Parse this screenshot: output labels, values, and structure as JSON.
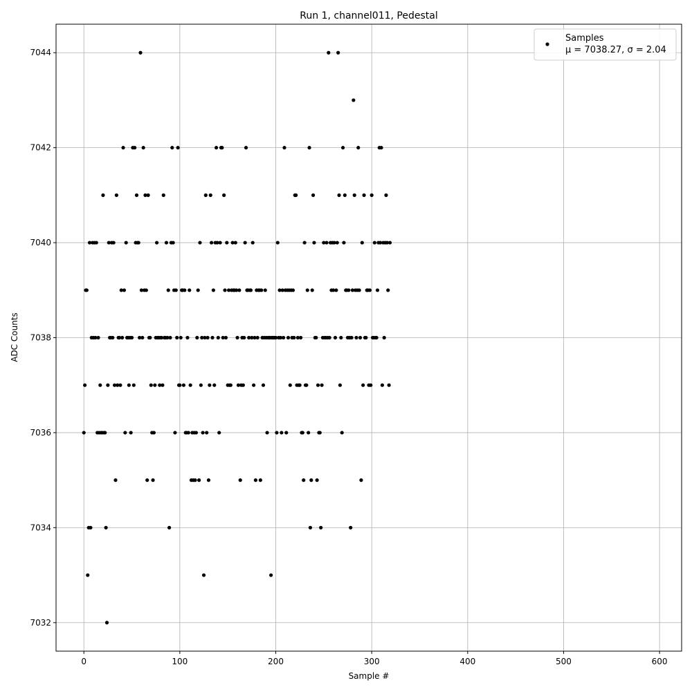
{
  "chart_data": {
    "type": "scatter",
    "title": "Run 1, channel011, Pedestal",
    "xlabel": "Sample #",
    "ylabel": "ADC Counts",
    "xlim": [
      -29,
      623
    ],
    "ylim": [
      7031.4,
      7044.6
    ],
    "xticks": [
      0,
      100,
      200,
      300,
      400,
      500,
      600
    ],
    "yticks": [
      7032,
      7034,
      7036,
      7038,
      7040,
      7042,
      7044
    ],
    "grid": true,
    "marker_color": "#000000",
    "legend": {
      "position": "top-right",
      "entries": [
        {
          "label": "Samples",
          "stat_line": "μ = 7038.27, σ = 2.04"
        }
      ]
    },
    "series": [
      {
        "name": "Samples",
        "points": [
          [
            0,
            7036
          ],
          [
            1,
            7037
          ],
          [
            2,
            7039
          ],
          [
            3,
            7039
          ],
          [
            4,
            7033
          ],
          [
            5,
            7034
          ],
          [
            6,
            7040
          ],
          [
            7,
            7034
          ],
          [
            8,
            7038
          ],
          [
            9,
            7040
          ],
          [
            10,
            7038
          ],
          [
            11,
            7040
          ],
          [
            12,
            7038
          ],
          [
            13,
            7040
          ],
          [
            14,
            7036
          ],
          [
            15,
            7038
          ],
          [
            16,
            7036
          ],
          [
            17,
            7037
          ],
          [
            18,
            7036
          ],
          [
            19,
            7036
          ],
          [
            20,
            7041
          ],
          [
            21,
            7036
          ],
          [
            22,
            7036
          ],
          [
            23,
            7034
          ],
          [
            24,
            7032
          ],
          [
            25,
            7037
          ],
          [
            26,
            7040
          ],
          [
            27,
            7038
          ],
          [
            28,
            7038
          ],
          [
            29,
            7040
          ],
          [
            30,
            7038
          ],
          [
            31,
            7040
          ],
          [
            32,
            7037
          ],
          [
            33,
            7035
          ],
          [
            34,
            7041
          ],
          [
            35,
            7037
          ],
          [
            36,
            7038
          ],
          [
            37,
            7038
          ],
          [
            38,
            7037
          ],
          [
            39,
            7039
          ],
          [
            40,
            7038
          ],
          [
            41,
            7042
          ],
          [
            42,
            7039
          ],
          [
            43,
            7036
          ],
          [
            44,
            7040
          ],
          [
            45,
            7038
          ],
          [
            46,
            7038
          ],
          [
            47,
            7037
          ],
          [
            48,
            7038
          ],
          [
            49,
            7036
          ],
          [
            50,
            7038
          ],
          [
            51,
            7042
          ],
          [
            52,
            7037
          ],
          [
            53,
            7042
          ],
          [
            54,
            7040
          ],
          [
            55,
            7041
          ],
          [
            56,
            7040
          ],
          [
            57,
            7040
          ],
          [
            58,
            7038
          ],
          [
            59,
            7044
          ],
          [
            60,
            7039
          ],
          [
            61,
            7038
          ],
          [
            62,
            7042
          ],
          [
            63,
            7039
          ],
          [
            64,
            7041
          ],
          [
            65,
            7039
          ],
          [
            66,
            7035
          ],
          [
            67,
            7041
          ],
          [
            68,
            7038
          ],
          [
            69,
            7038
          ],
          [
            70,
            7037
          ],
          [
            71,
            7036
          ],
          [
            72,
            7035
          ],
          [
            73,
            7036
          ],
          [
            74,
            7037
          ],
          [
            75,
            7038
          ],
          [
            76,
            7040
          ],
          [
            77,
            7038
          ],
          [
            78,
            7038
          ],
          [
            79,
            7037
          ],
          [
            80,
            7038
          ],
          [
            81,
            7038
          ],
          [
            82,
            7037
          ],
          [
            83,
            7041
          ],
          [
            84,
            7038
          ],
          [
            85,
            7038
          ],
          [
            86,
            7040
          ],
          [
            87,
            7038
          ],
          [
            88,
            7039
          ],
          [
            89,
            7034
          ],
          [
            90,
            7038
          ],
          [
            91,
            7040
          ],
          [
            92,
            7042
          ],
          [
            93,
            7040
          ],
          [
            94,
            7039
          ],
          [
            95,
            7036
          ],
          [
            96,
            7039
          ],
          [
            97,
            7038
          ],
          [
            98,
            7042
          ],
          [
            99,
            7037
          ],
          [
            100,
            7037
          ],
          [
            101,
            7038
          ],
          [
            102,
            7039
          ],
          [
            103,
            7039
          ],
          [
            104,
            7037
          ],
          [
            105,
            7039
          ],
          [
            106,
            7036
          ],
          [
            107,
            7036
          ],
          [
            108,
            7038
          ],
          [
            109,
            7036
          ],
          [
            110,
            7039
          ],
          [
            111,
            7037
          ],
          [
            112,
            7035
          ],
          [
            113,
            7036
          ],
          [
            114,
            7035
          ],
          [
            115,
            7036
          ],
          [
            116,
            7035
          ],
          [
            117,
            7036
          ],
          [
            118,
            7038
          ],
          [
            119,
            7039
          ],
          [
            120,
            7035
          ],
          [
            121,
            7040
          ],
          [
            122,
            7037
          ],
          [
            123,
            7038
          ],
          [
            124,
            7036
          ],
          [
            125,
            7033
          ],
          [
            126,
            7038
          ],
          [
            127,
            7041
          ],
          [
            128,
            7036
          ],
          [
            129,
            7038
          ],
          [
            130,
            7035
          ],
          [
            131,
            7037
          ],
          [
            132,
            7041
          ],
          [
            133,
            7040
          ],
          [
            134,
            7038
          ],
          [
            135,
            7039
          ],
          [
            136,
            7037
          ],
          [
            137,
            7040
          ],
          [
            138,
            7042
          ],
          [
            139,
            7040
          ],
          [
            140,
            7038
          ],
          [
            141,
            7036
          ],
          [
            142,
            7040
          ],
          [
            143,
            7042
          ],
          [
            144,
            7042
          ],
          [
            145,
            7038
          ],
          [
            146,
            7041
          ],
          [
            147,
            7039
          ],
          [
            148,
            7038
          ],
          [
            149,
            7040
          ],
          [
            150,
            7037
          ],
          [
            151,
            7039
          ],
          [
            152,
            7037
          ],
          [
            153,
            7037
          ],
          [
            154,
            7039
          ],
          [
            155,
            7040
          ],
          [
            156,
            7039
          ],
          [
            157,
            7039
          ],
          [
            158,
            7040
          ],
          [
            159,
            7039
          ],
          [
            160,
            7038
          ],
          [
            161,
            7037
          ],
          [
            162,
            7039
          ],
          [
            163,
            7035
          ],
          [
            164,
            7037
          ],
          [
            165,
            7038
          ],
          [
            166,
            7037
          ],
          [
            167,
            7038
          ],
          [
            168,
            7040
          ],
          [
            169,
            7042
          ],
          [
            170,
            7039
          ],
          [
            171,
            7039
          ],
          [
            172,
            7038
          ],
          [
            173,
            7039
          ],
          [
            174,
            7039
          ],
          [
            175,
            7038
          ],
          [
            176,
            7040
          ],
          [
            177,
            7037
          ],
          [
            178,
            7038
          ],
          [
            179,
            7035
          ],
          [
            180,
            7039
          ],
          [
            181,
            7038
          ],
          [
            182,
            7039
          ],
          [
            183,
            7039
          ],
          [
            184,
            7035
          ],
          [
            185,
            7039
          ],
          [
            186,
            7038
          ],
          [
            187,
            7037
          ],
          [
            188,
            7038
          ],
          [
            189,
            7039
          ],
          [
            190,
            7038
          ],
          [
            191,
            7036
          ],
          [
            192,
            7038
          ],
          [
            193,
            7038
          ],
          [
            194,
            7038
          ],
          [
            195,
            7033
          ],
          [
            196,
            7038
          ],
          [
            197,
            7038
          ],
          [
            198,
            7038
          ],
          [
            199,
            7038
          ],
          [
            200,
            7038
          ],
          [
            201,
            7036
          ],
          [
            202,
            7040
          ],
          [
            203,
            7038
          ],
          [
            204,
            7039
          ],
          [
            205,
            7038
          ],
          [
            206,
            7036
          ],
          [
            207,
            7039
          ],
          [
            208,
            7038
          ],
          [
            209,
            7042
          ],
          [
            210,
            7039
          ],
          [
            211,
            7036
          ],
          [
            212,
            7039
          ],
          [
            213,
            7038
          ],
          [
            214,
            7039
          ],
          [
            215,
            7037
          ],
          [
            216,
            7039
          ],
          [
            217,
            7038
          ],
          [
            218,
            7039
          ],
          [
            219,
            7038
          ],
          [
            220,
            7041
          ],
          [
            221,
            7041
          ],
          [
            222,
            7037
          ],
          [
            223,
            7038
          ],
          [
            224,
            7037
          ],
          [
            225,
            7037
          ],
          [
            226,
            7038
          ],
          [
            227,
            7036
          ],
          [
            228,
            7036
          ],
          [
            229,
            7035
          ],
          [
            230,
            7040
          ],
          [
            231,
            7037
          ],
          [
            232,
            7037
          ],
          [
            233,
            7039
          ],
          [
            234,
            7036
          ],
          [
            235,
            7042
          ],
          [
            236,
            7034
          ],
          [
            237,
            7035
          ],
          [
            238,
            7039
          ],
          [
            239,
            7041
          ],
          [
            240,
            7040
          ],
          [
            241,
            7038
          ],
          [
            242,
            7038
          ],
          [
            243,
            7035
          ],
          [
            244,
            7037
          ],
          [
            245,
            7036
          ],
          [
            246,
            7036
          ],
          [
            247,
            7034
          ],
          [
            248,
            7037
          ],
          [
            249,
            7038
          ],
          [
            250,
            7040
          ],
          [
            251,
            7038
          ],
          [
            252,
            7038
          ],
          [
            253,
            7040
          ],
          [
            254,
            7038
          ],
          [
            255,
            7044
          ],
          [
            256,
            7038
          ],
          [
            257,
            7040
          ],
          [
            258,
            7039
          ],
          [
            259,
            7040
          ],
          [
            260,
            7039
          ],
          [
            261,
            7040
          ],
          [
            262,
            7038
          ],
          [
            263,
            7039
          ],
          [
            264,
            7040
          ],
          [
            265,
            7044
          ],
          [
            266,
            7041
          ],
          [
            267,
            7037
          ],
          [
            268,
            7038
          ],
          [
            269,
            7036
          ],
          [
            270,
            7042
          ],
          [
            271,
            7040
          ],
          [
            272,
            7041
          ],
          [
            273,
            7039
          ],
          [
            274,
            7039
          ],
          [
            275,
            7038
          ],
          [
            276,
            7039
          ],
          [
            277,
            7038
          ],
          [
            278,
            7034
          ],
          [
            279,
            7038
          ],
          [
            280,
            7039
          ],
          [
            281,
            7043
          ],
          [
            282,
            7041
          ],
          [
            283,
            7039
          ],
          [
            284,
            7038
          ],
          [
            285,
            7039
          ],
          [
            286,
            7042
          ],
          [
            287,
            7039
          ],
          [
            288,
            7038
          ],
          [
            289,
            7035
          ],
          [
            290,
            7040
          ],
          [
            291,
            7037
          ],
          [
            292,
            7041
          ],
          [
            293,
            7038
          ],
          [
            294,
            7038
          ],
          [
            295,
            7039
          ],
          [
            296,
            7039
          ],
          [
            297,
            7037
          ],
          [
            298,
            7039
          ],
          [
            299,
            7037
          ],
          [
            300,
            7041
          ],
          [
            301,
            7038
          ],
          [
            302,
            7038
          ],
          [
            303,
            7040
          ],
          [
            304,
            7038
          ],
          [
            305,
            7038
          ],
          [
            306,
            7039
          ],
          [
            307,
            7040
          ],
          [
            308,
            7042
          ],
          [
            309,
            7040
          ],
          [
            310,
            7042
          ],
          [
            311,
            7037
          ],
          [
            312,
            7040
          ],
          [
            313,
            7038
          ],
          [
            314,
            7040
          ],
          [
            315,
            7041
          ],
          [
            316,
            7040
          ],
          [
            317,
            7039
          ],
          [
            318,
            7037
          ],
          [
            319,
            7040
          ]
        ]
      }
    ]
  }
}
